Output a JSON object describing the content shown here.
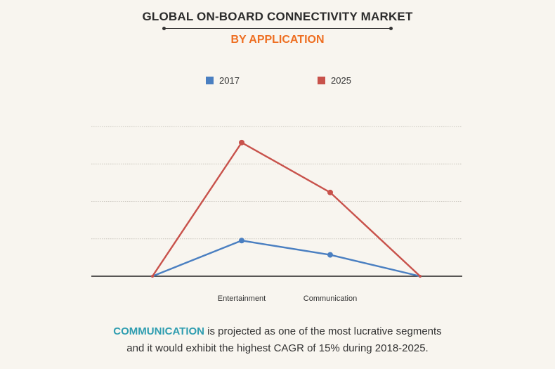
{
  "header": {
    "title": "GLOBAL ON-BOARD CONNECTIVITY MARKET",
    "subtitle": "BY APPLICATION"
  },
  "chart_data": {
    "type": "line",
    "categories": [
      "",
      "Entertainment",
      "Communication",
      ""
    ],
    "series": [
      {
        "name": "2017",
        "values": [
          0,
          10,
          6,
          0
        ],
        "color": "#4a7fc1"
      },
      {
        "name": "2025",
        "values": [
          0,
          37.5,
          23.5,
          0
        ],
        "color": "#c8524b"
      }
    ],
    "ylim": [
      0,
      42
    ],
    "grid": true,
    "legend": "top-center",
    "xlabel": "",
    "ylabel": ""
  },
  "caption": {
    "highlight": "COMMUNICATION",
    "line1_rest": " is projected as one of the most lucrative segments",
    "line2": "and it would exhibit the highest CAGR of 15% during 2018-2025."
  },
  "colors": {
    "title": "#2b2b2b",
    "subtitle": "#ee6f22",
    "highlight": "#2f9db0",
    "background": "#f8f5ef"
  }
}
